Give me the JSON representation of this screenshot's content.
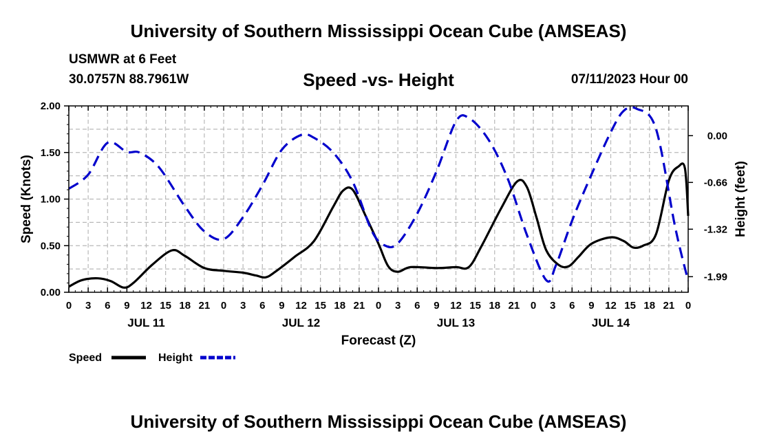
{
  "header": {
    "title": "University of Southern Mississippi Ocean Cube (AMSEAS)",
    "station": "USMWR at 6 Feet",
    "coords": "30.0757N  88.7961W",
    "subtitle": "Speed -vs- Height",
    "datetime": "07/11/2023 Hour 00"
  },
  "footer": {
    "title": "University of Southern Mississippi Ocean Cube (AMSEAS)"
  },
  "chart_data": {
    "type": "line",
    "title": "Speed -vs- Height",
    "xlabel": "Forecast (Z)",
    "ylabel": "Speed (Knots)",
    "y2label": "Height (feet)",
    "x_range_hours": [
      0,
      96
    ],
    "ylim": [
      0,
      2.0
    ],
    "y2lim": [
      -2.21,
      0.42
    ],
    "y_ticks": [
      "0.00",
      "0.50",
      "1.00",
      "1.50",
      "2.00"
    ],
    "y_tick_values": [
      0,
      0.5,
      1.0,
      1.5,
      2.0
    ],
    "y2_ticks": [
      "0.00",
      "-0.66",
      "-1.32",
      "-1.99"
    ],
    "y2_tick_values": [
      0.0,
      -0.66,
      -1.32,
      -1.99
    ],
    "x_tick_labels": [
      "0",
      "3",
      "6",
      "9",
      "12",
      "15",
      "18",
      "21",
      "0",
      "3",
      "6",
      "9",
      "12",
      "15",
      "18",
      "21",
      "0",
      "3",
      "6",
      "9",
      "12",
      "15",
      "18",
      "21",
      "0",
      "3",
      "6",
      "9",
      "12",
      "15",
      "18",
      "21",
      "0"
    ],
    "day_labels": [
      {
        "label": "JUL 11",
        "hour": 12
      },
      {
        "label": "JUL 12",
        "hour": 36
      },
      {
        "label": "JUL 13",
        "hour": 60
      },
      {
        "label": "JUL 14",
        "hour": 84
      }
    ],
    "grid": true,
    "legend": "bottom-left",
    "series": [
      {
        "name": "Speed",
        "axis": "left",
        "color": "#000000",
        "style": "solid",
        "points": [
          [
            0,
            0.06
          ],
          [
            2,
            0.13
          ],
          [
            4.5,
            0.15
          ],
          [
            6.5,
            0.12
          ],
          [
            8.5,
            0.05
          ],
          [
            10,
            0.1
          ],
          [
            13,
            0.3
          ],
          [
            16,
            0.45
          ],
          [
            18,
            0.39
          ],
          [
            21,
            0.26
          ],
          [
            24,
            0.23
          ],
          [
            27,
            0.21
          ],
          [
            29,
            0.18
          ],
          [
            30.5,
            0.16
          ],
          [
            32,
            0.22
          ],
          [
            35,
            0.38
          ],
          [
            38,
            0.55
          ],
          [
            41,
            0.92
          ],
          [
            42.5,
            1.09
          ],
          [
            44,
            1.1
          ],
          [
            46,
            0.82
          ],
          [
            48,
            0.52
          ],
          [
            49.5,
            0.28
          ],
          [
            51,
            0.22
          ],
          [
            53,
            0.27
          ],
          [
            57,
            0.26
          ],
          [
            60,
            0.27
          ],
          [
            62,
            0.27
          ],
          [
            64,
            0.5
          ],
          [
            67,
            0.9
          ],
          [
            69.5,
            1.19
          ],
          [
            71,
            1.13
          ],
          [
            72.5,
            0.8
          ],
          [
            74,
            0.45
          ],
          [
            76,
            0.29
          ],
          [
            77.5,
            0.28
          ],
          [
            79,
            0.38
          ],
          [
            81,
            0.52
          ],
          [
            84,
            0.59
          ],
          [
            86,
            0.55
          ],
          [
            87.5,
            0.48
          ],
          [
            89,
            0.5
          ],
          [
            91,
            0.62
          ],
          [
            93,
            1.2
          ],
          [
            94.5,
            1.35
          ],
          [
            95.5,
            1.33
          ],
          [
            96,
            0.82
          ]
        ]
      },
      {
        "name": "Height",
        "axis": "right",
        "color": "#0000cc",
        "style": "dashed",
        "points": [
          [
            0,
            -0.75
          ],
          [
            3,
            -0.55
          ],
          [
            6,
            -0.1
          ],
          [
            9,
            -0.23
          ],
          [
            11,
            -0.24
          ],
          [
            14,
            -0.45
          ],
          [
            18,
            -1.0
          ],
          [
            21,
            -1.35
          ],
          [
            24,
            -1.46
          ],
          [
            27,
            -1.15
          ],
          [
            30,
            -0.7
          ],
          [
            33,
            -0.2
          ],
          [
            36,
            0.01
          ],
          [
            38,
            -0.03
          ],
          [
            41,
            -0.24
          ],
          [
            44,
            -0.65
          ],
          [
            47,
            -1.35
          ],
          [
            49,
            -1.55
          ],
          [
            51,
            -1.52
          ],
          [
            54,
            -1.1
          ],
          [
            57,
            -0.5
          ],
          [
            60,
            0.2
          ],
          [
            62,
            0.25
          ],
          [
            65,
            -0.05
          ],
          [
            68,
            -0.6
          ],
          [
            71,
            -1.4
          ],
          [
            74,
            -2.04
          ],
          [
            75.5,
            -1.83
          ],
          [
            78,
            -1.2
          ],
          [
            81,
            -0.55
          ],
          [
            84,
            0.05
          ],
          [
            86,
            0.35
          ],
          [
            88,
            0.38
          ],
          [
            91,
            0.1
          ],
          [
            94,
            -1.3
          ],
          [
            96,
            -2.05
          ]
        ]
      }
    ]
  },
  "legend": {
    "speed_label": "Speed",
    "height_label": "Height"
  }
}
